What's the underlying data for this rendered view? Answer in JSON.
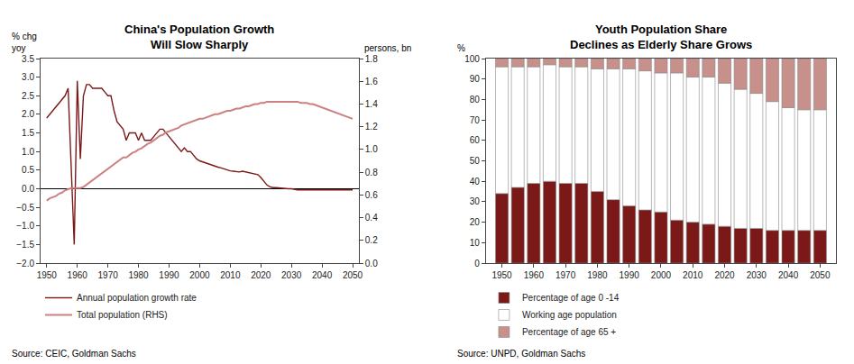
{
  "chart_data": [
    {
      "type": "line",
      "title": "China's Population Growth\nWill Slow Sharply",
      "ylabel": "% chg\nyoy",
      "y2label": "persons, bn",
      "annotations": [
        "Source: CEIC, Goldman Sachs"
      ],
      "x": [
        1950,
        1951,
        1952,
        1953,
        1954,
        1955,
        1956,
        1957,
        1958,
        1959,
        1960,
        1961,
        1962,
        1963,
        1964,
        1965,
        1966,
        1967,
        1968,
        1969,
        1970,
        1971,
        1972,
        1973,
        1974,
        1975,
        1976,
        1977,
        1978,
        1979,
        1980,
        1981,
        1982,
        1983,
        1984,
        1985,
        1986,
        1987,
        1988,
        1989,
        1990,
        1991,
        1992,
        1993,
        1994,
        1995,
        1996,
        1997,
        1998,
        1999,
        2000,
        2001,
        2002,
        2003,
        2004,
        2005,
        2006,
        2007,
        2008,
        2009,
        2010,
        2011,
        2012,
        2013,
        2014,
        2015,
        2016,
        2017,
        2018,
        2019,
        2020,
        2021,
        2022,
        2023,
        2024,
        2025,
        2026,
        2027,
        2028,
        2029,
        2030,
        2031,
        2032,
        2033,
        2034,
        2035,
        2036,
        2037,
        2038,
        2039,
        2040,
        2041,
        2042,
        2043,
        2044,
        2045,
        2046,
        2047,
        2048,
        2049,
        2050
      ],
      "series": [
        {
          "name": "Annual population growth rate",
          "color": "#7B1818",
          "values": [
            1.9,
            2.0,
            2.1,
            2.2,
            2.3,
            2.4,
            2.5,
            2.7,
            0.5,
            -1.5,
            2.9,
            0.8,
            2.5,
            2.8,
            2.8,
            2.7,
            2.7,
            2.7,
            2.7,
            2.6,
            2.5,
            2.5,
            2.1,
            1.8,
            1.7,
            1.6,
            1.3,
            1.5,
            1.5,
            1.5,
            1.3,
            1.5,
            1.3,
            1.3,
            1.3,
            1.4,
            1.5,
            1.6,
            1.6,
            1.5,
            1.4,
            1.3,
            1.2,
            1.1,
            1.0,
            1.1,
            1.0,
            1.0,
            0.9,
            0.8,
            0.75,
            0.72,
            0.7,
            0.67,
            0.63,
            0.6,
            0.58,
            0.56,
            0.53,
            0.5,
            0.48,
            0.47,
            0.46,
            0.45,
            0.47,
            0.45,
            0.43,
            0.42,
            0.4,
            0.38,
            0.3,
            0.2,
            0.1,
            0.05,
            0.03,
            0.03,
            0.02,
            0.02,
            0.0,
            0.0,
            0.0,
            -0.02,
            -0.03,
            -0.03,
            -0.03,
            -0.03,
            -0.03,
            -0.03,
            -0.03,
            -0.03,
            -0.03,
            -0.03,
            -0.03,
            -0.03,
            -0.03,
            -0.03,
            -0.03,
            -0.03,
            -0.03,
            -0.03,
            -0.03
          ]
        },
        {
          "name": "Total population (RHS)",
          "color": "#CC8080",
          "axis": "y2",
          "values": [
            0.55,
            0.57,
            0.58,
            0.59,
            0.61,
            0.62,
            0.64,
            0.65,
            0.66,
            0.66,
            0.66,
            0.66,
            0.67,
            0.69,
            0.71,
            0.73,
            0.75,
            0.77,
            0.79,
            0.81,
            0.83,
            0.85,
            0.87,
            0.89,
            0.91,
            0.93,
            0.93,
            0.95,
            0.97,
            0.98,
            1.0,
            1.01,
            1.03,
            1.05,
            1.06,
            1.08,
            1.1,
            1.12,
            1.13,
            1.15,
            1.16,
            1.17,
            1.18,
            1.19,
            1.21,
            1.22,
            1.23,
            1.24,
            1.25,
            1.26,
            1.27,
            1.27,
            1.28,
            1.29,
            1.3,
            1.31,
            1.31,
            1.32,
            1.33,
            1.34,
            1.34,
            1.35,
            1.36,
            1.36,
            1.37,
            1.38,
            1.38,
            1.39,
            1.4,
            1.4,
            1.41,
            1.41,
            1.42,
            1.42,
            1.42,
            1.42,
            1.42,
            1.42,
            1.42,
            1.42,
            1.42,
            1.42,
            1.42,
            1.41,
            1.41,
            1.41,
            1.4,
            1.4,
            1.39,
            1.38,
            1.37,
            1.36,
            1.35,
            1.34,
            1.33,
            1.32,
            1.31,
            1.3,
            1.29,
            1.28,
            1.27
          ]
        }
      ],
      "xlim": [
        1948,
        2052
      ],
      "xticks": [
        1950,
        1960,
        1970,
        1980,
        1990,
        2000,
        2010,
        2020,
        2030,
        2040,
        2050
      ],
      "ylim": [
        -2.0,
        3.5
      ],
      "yticks": [
        {
          "value": -2.0,
          "label": "−2.0"
        },
        {
          "value": -1.5,
          "label": "−1.5"
        },
        {
          "value": -1.0,
          "label": "−1.0"
        },
        {
          "value": -0.5,
          "label": "−0.5"
        },
        {
          "value": 0.0,
          "label": "0.0"
        },
        0.5,
        {
          "value": 1.0,
          "label": "1.0"
        },
        1.5,
        {
          "value": 2.0,
          "label": "2.0"
        },
        2.5,
        {
          "value": 3.0,
          "label": "3.0"
        },
        3.5
      ],
      "y2lim": [
        0.0,
        1.8
      ],
      "y2ticks": [
        {
          "value": 0.0,
          "label": "0.0"
        },
        0.2,
        0.4,
        0.6,
        0.8,
        {
          "value": 1.0,
          "label": "1.0"
        },
        1.2,
        1.4,
        1.6,
        1.8
      ],
      "legend": "bottom",
      "grid": false
    },
    {
      "type": "bar",
      "stacked": true,
      "title": "Youth Population Share\nDeclines as Elderly Share Grows",
      "ylabel": "%",
      "annotations": [
        "Source: UNPD, Goldman Sachs"
      ],
      "x": [
        1950,
        1955,
        1960,
        1965,
        1970,
        1975,
        1980,
        1985,
        1990,
        1995,
        2000,
        2005,
        2010,
        2015,
        2020,
        2025,
        2030,
        2035,
        2040,
        2045,
        2050
      ],
      "series": [
        {
          "name": "Percentage of age 0 -14",
          "color": "#7B1818",
          "values": [
            34,
            37,
            39,
            40,
            39,
            39,
            35,
            31,
            28,
            26,
            25,
            21,
            20,
            19,
            18,
            17,
            17,
            16,
            16,
            16,
            16
          ]
        },
        {
          "name": "Working age population",
          "color": "#FFFFFF",
          "values": [
            62,
            59,
            57,
            57,
            57,
            57,
            60,
            64,
            67,
            68,
            68,
            72,
            71,
            72,
            70,
            68,
            66,
            63,
            60,
            59,
            59
          ]
        },
        {
          "name": "Percentage of age 65 +",
          "color": "#C8908A",
          "values": [
            4,
            4,
            4,
            3,
            4,
            4,
            5,
            5,
            5,
            6,
            7,
            7,
            9,
            9,
            12,
            15,
            17,
            21,
            24,
            25,
            25
          ]
        }
      ],
      "xlim": [
        1945,
        2055
      ],
      "xticks": [
        1950,
        1960,
        1970,
        1980,
        1990,
        2000,
        2010,
        2020,
        2030,
        2040,
        2050
      ],
      "ylim": [
        0,
        100
      ],
      "yticks": [
        0,
        10,
        20,
        30,
        40,
        50,
        60,
        70,
        80,
        90,
        100
      ],
      "legend": "bottom",
      "grid": false
    }
  ]
}
